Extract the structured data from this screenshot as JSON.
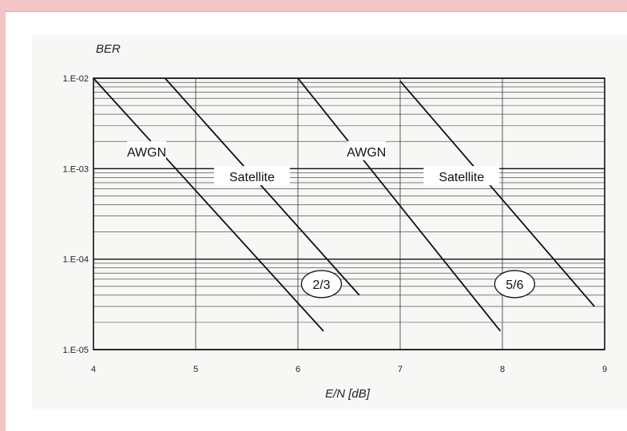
{
  "chart_data": {
    "type": "line",
    "title": "",
    "xlabel": "E/N [dB]",
    "ylabel": "BER",
    "xlim": [
      4,
      9
    ],
    "ylim": [
      1e-05,
      0.01
    ],
    "yscale": "log",
    "grid": true,
    "x_ticks": [
      4,
      5,
      6,
      7,
      8,
      9
    ],
    "x_tick_labels": [
      "4",
      "5",
      "6",
      "7",
      "8",
      "9"
    ],
    "y_ticks": [
      0.01,
      0.001,
      0.0001,
      1e-05
    ],
    "y_tick_labels": [
      "1.E-02",
      "1.E-03",
      "1.E-04",
      "1.E-05"
    ],
    "series": [
      {
        "name": "AWGN",
        "group": "2/3",
        "x": [
          4.0,
          6.25
        ],
        "y": [
          0.01,
          1.6e-05
        ]
      },
      {
        "name": "Satellite",
        "group": "2/3",
        "x": [
          4.7,
          6.6
        ],
        "y": [
          0.01,
          4e-05
        ]
      },
      {
        "name": "AWGN",
        "group": "5/6",
        "x": [
          6.0,
          7.98
        ],
        "y": [
          0.01,
          1.6e-05
        ]
      },
      {
        "name": "Satellite",
        "group": "5/6",
        "x": [
          7.0,
          8.9
        ],
        "y": [
          0.0093,
          3e-05
        ]
      }
    ],
    "labels": [
      {
        "text": "AWGN",
        "x": 4.52,
        "y": 0.00155
      },
      {
        "text": "Satellite",
        "x": 5.55,
        "y": 0.00082
      },
      {
        "text": "AWGN",
        "x": 6.67,
        "y": 0.00155
      },
      {
        "text": "Satellite",
        "x": 7.6,
        "y": 0.00082
      }
    ],
    "badges": [
      {
        "text": "2/3",
        "x": 6.23,
        "y": 5.3e-05
      },
      {
        "text": "5/6",
        "x": 8.12,
        "y": 5.3e-05
      }
    ],
    "colors": {
      "line": "#111111",
      "grid": "#333333",
      "frame": "#f3c4c4"
    }
  }
}
